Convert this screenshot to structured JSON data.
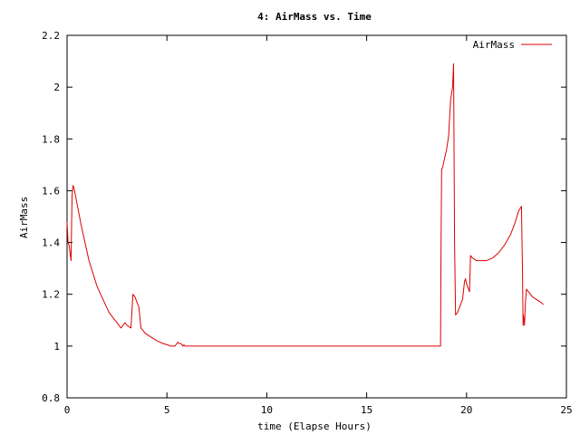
{
  "chart_data": {
    "type": "line",
    "title": "4: AirMass vs. Time",
    "xlabel": "time (Elapse Hours)",
    "ylabel": "AirMass",
    "xlim": [
      0,
      25
    ],
    "ylim": [
      0.8,
      2.2
    ],
    "x_ticks": [
      0,
      5,
      10,
      15,
      20,
      25
    ],
    "x_tick_labels": [
      "0",
      "5",
      "10",
      "15",
      "20",
      "25"
    ],
    "y_ticks": [
      0.8,
      1.0,
      1.2,
      1.4,
      1.6,
      1.8,
      2.0,
      2.2
    ],
    "y_tick_labels": [
      "0.8",
      "1",
      "1.2",
      "1.4",
      "1.6",
      "1.8",
      "2",
      "2.2"
    ],
    "grid": false,
    "legend_position": "top-right",
    "series": [
      {
        "name": "AirMass",
        "color": "#dd0000",
        "x": [
          0.0,
          0.05,
          0.1,
          0.15,
          0.2,
          0.25,
          0.3,
          0.35,
          0.5,
          0.7,
          0.9,
          1.1,
          1.3,
          1.5,
          1.8,
          2.1,
          2.4,
          2.7,
          2.9,
          3.0,
          3.1,
          3.2,
          3.3,
          3.4,
          3.5,
          3.6,
          3.7,
          3.8,
          3.85,
          3.9,
          4.2,
          4.5,
          4.8,
          5.0,
          5.2,
          5.4,
          5.5,
          5.55,
          5.6,
          5.7,
          5.8,
          5.85,
          5.9,
          6.0,
          7.0,
          10.0,
          15.0,
          18.0,
          18.7,
          18.72,
          18.75,
          18.8,
          19.0,
          19.1,
          19.2,
          19.3,
          19.35,
          19.4,
          19.45,
          19.55,
          19.6,
          19.8,
          19.9,
          19.95,
          20.0,
          20.1,
          20.15,
          20.2,
          20.3,
          20.5,
          20.7,
          21.0,
          21.3,
          21.6,
          21.9,
          22.2,
          22.4,
          22.6,
          22.75,
          22.8,
          22.83,
          22.85,
          22.9,
          22.95,
          23.0,
          23.1,
          23.3,
          23.5,
          23.7,
          23.85
        ],
        "y": [
          1.48,
          1.4,
          1.39,
          1.36,
          1.33,
          1.58,
          1.62,
          1.61,
          1.55,
          1.47,
          1.4,
          1.33,
          1.28,
          1.23,
          1.18,
          1.13,
          1.1,
          1.07,
          1.09,
          1.08,
          1.075,
          1.07,
          1.2,
          1.19,
          1.17,
          1.15,
          1.07,
          1.06,
          1.055,
          1.05,
          1.035,
          1.02,
          1.01,
          1.005,
          1.0,
          1.0,
          1.01,
          1.015,
          1.01,
          1.01,
          1.0,
          1.005,
          1.0,
          1.0,
          1.0,
          1.0,
          1.0,
          1.0,
          1.0,
          1.35,
          1.68,
          1.69,
          1.76,
          1.81,
          1.95,
          2.0,
          2.09,
          1.4,
          1.12,
          1.13,
          1.14,
          1.18,
          1.25,
          1.26,
          1.24,
          1.22,
          1.21,
          1.35,
          1.34,
          1.33,
          1.33,
          1.33,
          1.34,
          1.36,
          1.39,
          1.43,
          1.47,
          1.52,
          1.54,
          1.3,
          1.08,
          1.12,
          1.08,
          1.17,
          1.22,
          1.21,
          1.19,
          1.18,
          1.17,
          1.16
        ]
      }
    ]
  }
}
